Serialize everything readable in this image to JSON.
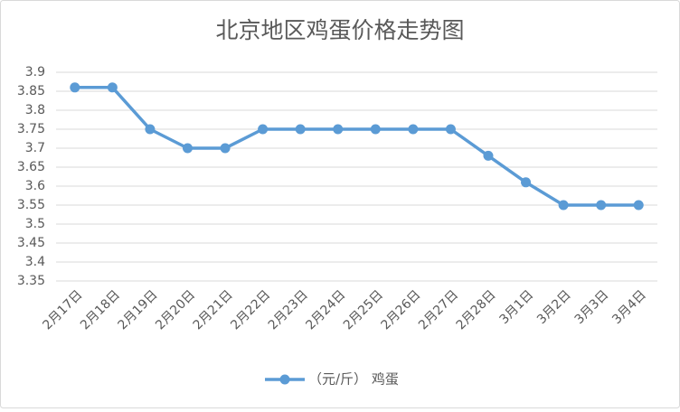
{
  "chart_data": {
    "type": "line",
    "title": "北京地区鸡蛋价格走势图",
    "categories": [
      "2月17日",
      "2月18日",
      "2月19日",
      "2月20日",
      "2月21日",
      "2月22日",
      "2月23日",
      "2月24日",
      "2月25日",
      "2月26日",
      "2月27日",
      "2月28日",
      "3月1日",
      "3月2日",
      "3月3日",
      "3月4日"
    ],
    "series": [
      {
        "name": "（元/斤） 鸡蛋",
        "color": "#5b9bd5",
        "values": [
          3.86,
          3.86,
          3.75,
          3.7,
          3.7,
          3.75,
          3.75,
          3.75,
          3.75,
          3.75,
          3.75,
          3.68,
          3.61,
          3.55,
          3.55,
          3.55
        ]
      }
    ],
    "ylim": [
      3.35,
      3.9
    ],
    "yticks": [
      3.35,
      3.4,
      3.45,
      3.5,
      3.55,
      3.6,
      3.65,
      3.7,
      3.75,
      3.8,
      3.85,
      3.9
    ],
    "grid": true,
    "legend": "bottom"
  }
}
